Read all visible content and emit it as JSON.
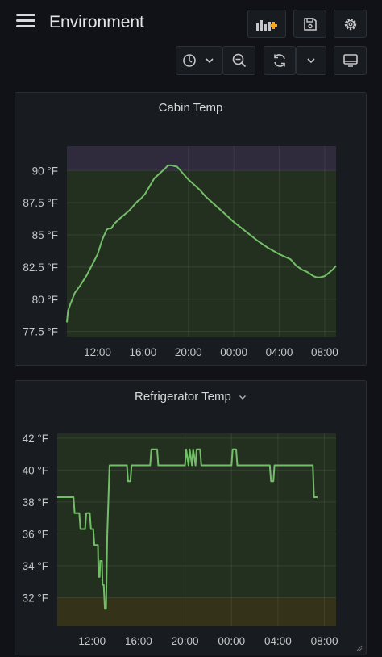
{
  "header": {
    "title": "Environment",
    "icons": [
      "menu-icon",
      "add-panel-icon",
      "save-icon",
      "settings-icon",
      "time-picker-icon",
      "chevron-down-icon",
      "zoom-out-icon",
      "refresh-icon",
      "chevron-down-icon",
      "tv-mode-icon"
    ]
  },
  "colors": {
    "line": "#73bf69",
    "ok_band": "#24301f",
    "warn_band_top": "#2f2a3c",
    "warn_band_bottom": "#343218"
  },
  "panels": [
    {
      "title": "Cabin Temp"
    },
    {
      "title": "Refrigerator Temp"
    }
  ],
  "chart_data": [
    {
      "type": "line",
      "title": "Cabin Temp",
      "x_ticks": [
        "12:00",
        "16:00",
        "20:00",
        "00:00",
        "04:00",
        "08:00"
      ],
      "y_ticks": [
        "77.5 °F",
        "80 °F",
        "82.5 °F",
        "85 °F",
        "87.5 °F",
        "90 °F"
      ],
      "x_unit": "hours since 08:00 (day 1)",
      "xlim": [
        1.3,
        25.0
      ],
      "ylim": [
        77.1,
        91.9
      ],
      "threshold_above": 90,
      "series": [
        {
          "x": [
            1.3,
            1.4,
            1.6,
            2.0,
            2.5,
            3.0,
            3.3,
            3.6,
            4.0,
            4.4,
            4.8,
            5.0,
            5.2,
            5.5,
            6.0,
            6.4,
            6.8,
            7.2,
            7.5,
            7.8,
            8.2,
            8.6,
            9.0,
            9.5,
            10.0,
            10.2,
            10.5,
            11.0,
            11.5,
            12.0,
            12.5,
            13.0,
            13.5,
            14.0,
            15.0,
            16.0,
            17.0,
            18.0,
            19.0,
            20.0,
            21.0,
            21.5,
            22.0,
            22.5,
            23.0,
            23.3,
            23.6,
            24.0,
            24.3,
            24.7,
            25.0
          ],
          "y": [
            78.2,
            79.1,
            79.6,
            80.5,
            81.1,
            81.8,
            82.3,
            82.8,
            83.5,
            84.6,
            85.4,
            85.5,
            85.5,
            85.9,
            86.3,
            86.6,
            86.9,
            87.3,
            87.6,
            87.8,
            88.2,
            88.8,
            89.4,
            89.8,
            90.2,
            90.4,
            90.4,
            90.3,
            89.8,
            89.3,
            88.9,
            88.5,
            88.0,
            87.6,
            86.8,
            86.0,
            85.3,
            84.6,
            84.0,
            83.5,
            83.1,
            82.6,
            82.3,
            82.1,
            81.8,
            81.7,
            81.7,
            81.8,
            82.0,
            82.3,
            82.6
          ]
        }
      ]
    },
    {
      "type": "line",
      "title": "Refrigerator Temp",
      "x_ticks": [
        "12:00",
        "16:00",
        "20:00",
        "00:00",
        "04:00",
        "08:00"
      ],
      "y_ticks": [
        "42 °F",
        "40 °F",
        "38 °F",
        "36 °F",
        "34 °F",
        "32 °F"
      ],
      "x_unit": "hours since 08:00 (day 1)",
      "xlim": [
        1.0,
        25.0
      ],
      "ylim": [
        30.2,
        42.3
      ],
      "threshold_below": 32,
      "series": [
        {
          "x": [
            1.0,
            2.4,
            2.5,
            2.9,
            3.0,
            3.4,
            3.5,
            3.8,
            3.9,
            4.1,
            4.2,
            4.5,
            4.55,
            4.65,
            4.7,
            4.85,
            4.9,
            5.0,
            5.1,
            5.2,
            5.3,
            5.5,
            7.0,
            7.1,
            7.3,
            7.4,
            9.0,
            9.1,
            9.6,
            9.7,
            12.0,
            12.1,
            12.3,
            12.4,
            12.6,
            12.7,
            12.9,
            13.0,
            13.3,
            13.4,
            16.0,
            16.1,
            16.4,
            16.5,
            19.3,
            19.4,
            19.6,
            19.7,
            23.0,
            23.1,
            23.3,
            23.4
          ],
          "y": [
            38.3,
            38.3,
            37.3,
            37.3,
            36.3,
            36.3,
            37.3,
            37.3,
            36.3,
            36.3,
            35.3,
            35.3,
            33.3,
            33.3,
            34.3,
            34.3,
            32.8,
            32.8,
            31.3,
            31.3,
            35.8,
            40.3,
            40.3,
            39.3,
            39.3,
            40.3,
            40.3,
            41.3,
            41.3,
            40.3,
            40.3,
            41.3,
            40.3,
            41.3,
            40.3,
            41.3,
            40.3,
            41.3,
            41.3,
            40.3,
            40.3,
            41.3,
            41.3,
            40.3,
            40.3,
            39.3,
            39.3,
            40.3,
            40.3,
            38.3,
            38.3,
            38.3
          ]
        }
      ]
    }
  ]
}
